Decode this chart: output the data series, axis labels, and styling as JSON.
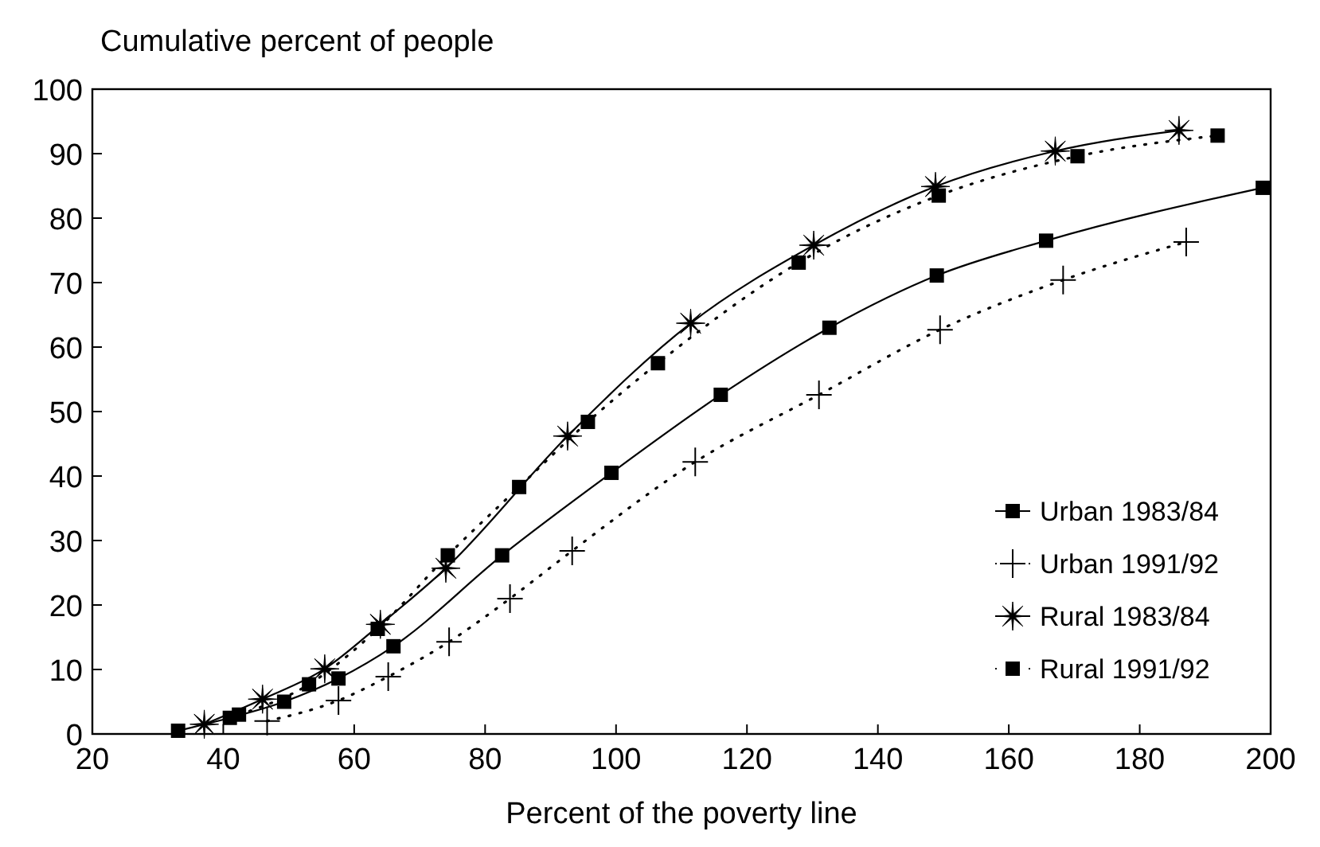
{
  "chart_data": {
    "type": "line",
    "ylabel": "Cumulative percent of people",
    "xlabel": "Percent of the poverty line",
    "xlim": [
      20,
      200
    ],
    "xticks": [
      20,
      40,
      60,
      80,
      100,
      120,
      140,
      160,
      180,
      200
    ],
    "ylim": [
      0,
      100
    ],
    "yticks": [
      0,
      10,
      20,
      30,
      40,
      50,
      60,
      70,
      80,
      90,
      100
    ],
    "grid": false,
    "legend": "bottom right",
    "series": [
      {
        "name": "Urban 1983/84",
        "color": "#000000",
        "marker": "square",
        "line_style": "solid",
        "x": [
          33.1,
          41,
          49.3,
          57.6,
          66,
          82.6,
          99.3,
          116,
          132.6,
          149,
          165.7,
          198.8
        ],
        "values": [
          0.5,
          2.5,
          5,
          8.6,
          13.6,
          27.7,
          40.5,
          52.6,
          63,
          71.1,
          76.5,
          84.7
        ]
      },
      {
        "name": "Urban 1991/92",
        "color": "#000000",
        "marker": "cross",
        "line_style": "dotted",
        "x": [
          46.7,
          57.6,
          65.2,
          74.5,
          83.8,
          93.3,
          112.1,
          131,
          149.5,
          168.3,
          187.1
        ],
        "values": [
          2,
          5.2,
          8.9,
          14.3,
          21,
          28.4,
          42.2,
          52.6,
          62.7,
          70.4,
          76.3
        ]
      },
      {
        "name": "Rural 1983/84",
        "color": "#000000",
        "marker": "star",
        "line_style": "solid",
        "x": [
          37.1,
          46,
          55.5,
          64,
          74,
          92.6,
          111.4,
          130.2,
          148.8,
          167.1,
          186
        ],
        "values": [
          1.5,
          5.4,
          10.1,
          17,
          25.7,
          46.2,
          63.7,
          75.8,
          84.9,
          90.4,
          93.6
        ]
      },
      {
        "name": "Rural 1991/92",
        "color": "#000000",
        "marker": "square",
        "line_style": "dotted",
        "x": [
          42.4,
          53.1,
          63.6,
          74.3,
          85.2,
          95.7,
          106.4,
          127.9,
          149.3,
          170.5,
          191.9
        ],
        "values": [
          3,
          7.7,
          16.3,
          27.7,
          38.3,
          48.4,
          57.5,
          73.1,
          83.5,
          89.6,
          92.8
        ]
      }
    ]
  }
}
